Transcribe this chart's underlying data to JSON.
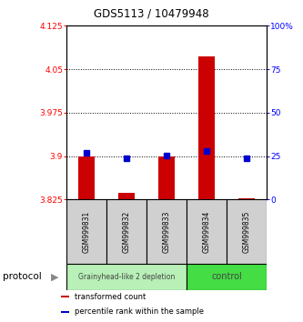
{
  "title": "GDS5113 / 10479948",
  "samples": [
    "GSM999831",
    "GSM999832",
    "GSM999833",
    "GSM999834",
    "GSM999835"
  ],
  "red_bar_top": [
    3.9,
    3.836,
    3.9,
    4.072,
    3.828
  ],
  "red_bar_bottom": [
    3.825,
    3.825,
    3.825,
    3.825,
    3.825
  ],
  "blue_values": [
    27,
    24,
    25.5,
    28,
    24
  ],
  "ylim_left": [
    3.825,
    4.125
  ],
  "ylim_right": [
    0,
    100
  ],
  "yticks_left": [
    3.825,
    3.9,
    3.975,
    4.05,
    4.125
  ],
  "ytick_labels_left": [
    "3.825",
    "3.9",
    "3.975",
    "4.05",
    "4.125"
  ],
  "yticks_right": [
    0,
    25,
    50,
    75,
    100
  ],
  "ytick_labels_right": [
    "0",
    "25",
    "50",
    "75",
    "100%"
  ],
  "groups": [
    {
      "label": "Grainyhead-like 2 depletion",
      "indices": [
        0,
        1,
        2
      ],
      "color": "#b8f0b8"
    },
    {
      "label": "control",
      "indices": [
        3,
        4
      ],
      "color": "#44dd44"
    }
  ],
  "bar_color": "#cc0000",
  "dot_color": "#0000cc",
  "protocol_label": "protocol",
  "legend": [
    {
      "color": "#cc0000",
      "label": "transformed count"
    },
    {
      "color": "#0000cc",
      "label": "percentile rank within the sample"
    }
  ],
  "background_color": "#ffffff",
  "plot_bg": "#ffffff",
  "sample_box_color": "#d0d0d0"
}
